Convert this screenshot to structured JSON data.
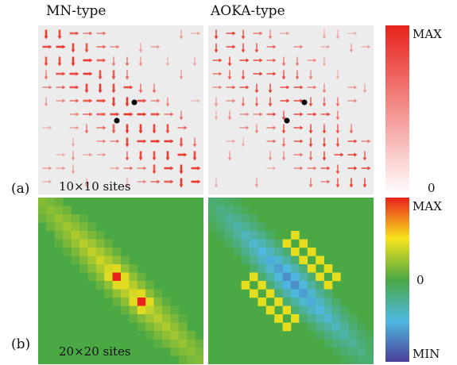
{
  "titles": {
    "left": "MN-type",
    "right": "AOKA-type"
  },
  "row_labels": {
    "a": "(a)",
    "b": "(b)"
  },
  "site_labels": {
    "a": "10×10 sites",
    "b": "20×20 sites"
  },
  "colorbar_a": {
    "max": "MAX",
    "min": "0"
  },
  "colorbar_b": {
    "max": "MAX",
    "mid": "0",
    "min": "MIN"
  },
  "colors": {
    "current_arrow": "#e8392e",
    "panel_a_bg": "#ececec",
    "panel_b_bg": "#4aa845",
    "dot": "#000000"
  }
}
